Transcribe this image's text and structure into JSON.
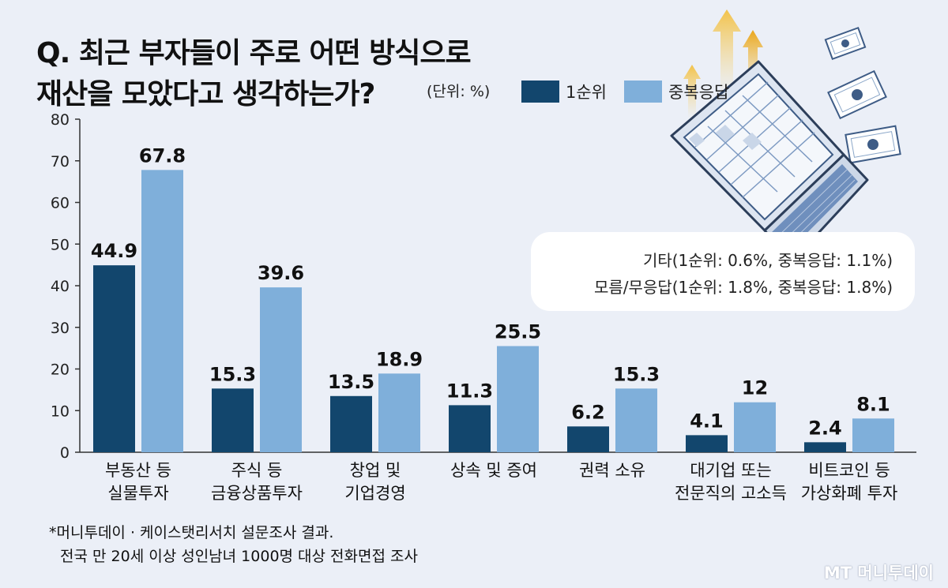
{
  "title": {
    "line1": "Q. 최근 부자들이 주로 어떤 방식으로",
    "line2": "재산을 모았다고 생각하는가?",
    "unit": "(단위: %)"
  },
  "legend": [
    {
      "label": "1순위",
      "color": "#12466d"
    },
    {
      "label": "중복응답",
      "color": "#7fafda"
    }
  ],
  "note": {
    "line1": "기타(1순위: 0.6%, 중복응답: 1.1%)",
    "line2": "모름/무응답(1순위: 1.8%, 중복응답: 1.8%)"
  },
  "footnote": {
    "line1": "*머니투데이 · 케이스탯리서치 설문조사 결과.",
    "line2": "전국 만 20세 이상 성인남녀 1000명 대상 전화면접 조사"
  },
  "logo": "MT 머니투데이",
  "colors": {
    "background": "#ebeff7",
    "dark": "#12466d",
    "light": "#7fafda"
  },
  "chart_data": {
    "type": "bar",
    "title": "Q. 최근 부자들이 주로 어떤 방식으로 재산을 모았다고 생각하는가?",
    "ylim": [
      0,
      80
    ],
    "yticks": [
      0,
      10,
      20,
      30,
      40,
      50,
      60,
      70,
      80
    ],
    "grid": false,
    "legend_position": "top",
    "categories": [
      [
        "부동산 등",
        "실물투자"
      ],
      [
        "주식 등",
        "금융상품투자"
      ],
      [
        "창업 및",
        "기업경영"
      ],
      [
        "상속 및 증여"
      ],
      [
        "권력 소유"
      ],
      [
        "대기업 또는",
        "전문직의 고소득"
      ],
      [
        "비트코인 등",
        "가상화폐 투자"
      ]
    ],
    "series": [
      {
        "name": "1순위",
        "color": "#12466d",
        "values": [
          44.9,
          15.3,
          13.5,
          11.3,
          6.2,
          4.1,
          2.4
        ],
        "labels": [
          "44.9",
          "15.3",
          "13.5",
          "11.3",
          "6.2",
          "4.1",
          "2.4"
        ]
      },
      {
        "name": "중복응답",
        "color": "#7fafda",
        "values": [
          67.8,
          39.6,
          18.9,
          25.5,
          15.3,
          12,
          8.1
        ],
        "labels": [
          "67.8",
          "39.6",
          "18.9",
          "25.5",
          "15.3",
          "12",
          "8.1"
        ]
      }
    ]
  }
}
